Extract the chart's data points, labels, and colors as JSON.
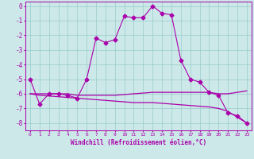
{
  "xlabel": "Windchill (Refroidissement éolien,°C)",
  "background_color": "#cce8e8",
  "grid_color": "#99cccc",
  "line_color": "#aa00aa",
  "xlim": [
    -0.5,
    23.5
  ],
  "ylim": [
    -8.5,
    0.3
  ],
  "yticks": [
    0,
    -1,
    -2,
    -3,
    -4,
    -5,
    -6,
    -7,
    -8
  ],
  "xticks": [
    0,
    1,
    2,
    3,
    4,
    5,
    6,
    7,
    8,
    9,
    10,
    11,
    12,
    13,
    14,
    15,
    16,
    17,
    18,
    19,
    20,
    21,
    22,
    23
  ],
  "line1_x": [
    0,
    1,
    2,
    3,
    4,
    5,
    6,
    7,
    8,
    9,
    10,
    11,
    12,
    13,
    14,
    15,
    16,
    17,
    18,
    19,
    20,
    21,
    22,
    23
  ],
  "line1_y": [
    -5.0,
    -6.7,
    -6.0,
    -6.0,
    -6.1,
    -6.3,
    -5.0,
    -2.2,
    -2.5,
    -2.3,
    -0.7,
    -0.8,
    -0.8,
    0.0,
    -0.5,
    -0.6,
    -3.7,
    -5.0,
    -5.2,
    -5.9,
    -6.1,
    -7.3,
    -7.5,
    -8.0
  ],
  "line2_x": [
    0,
    1,
    2,
    3,
    4,
    5,
    6,
    7,
    8,
    9,
    10,
    11,
    12,
    13,
    14,
    15,
    16,
    17,
    18,
    19,
    20,
    21,
    22,
    23
  ],
  "line2_y": [
    -6.0,
    -6.1,
    -6.15,
    -6.2,
    -6.25,
    -6.3,
    -6.35,
    -6.4,
    -6.45,
    -6.5,
    -6.55,
    -6.6,
    -6.6,
    -6.6,
    -6.65,
    -6.7,
    -6.75,
    -6.8,
    -6.85,
    -6.9,
    -7.0,
    -7.2,
    -7.6,
    -8.0
  ],
  "line3_x": [
    0,
    1,
    2,
    3,
    4,
    5,
    6,
    7,
    8,
    9,
    10,
    11,
    12,
    13,
    14,
    15,
    16,
    17,
    18,
    19,
    20,
    21,
    22,
    23
  ],
  "line3_y": [
    -6.0,
    -6.0,
    -6.0,
    -6.0,
    -6.0,
    -6.1,
    -6.1,
    -6.1,
    -6.1,
    -6.1,
    -6.05,
    -6.0,
    -5.95,
    -5.9,
    -5.9,
    -5.9,
    -5.9,
    -5.9,
    -5.9,
    -5.9,
    -6.0,
    -6.0,
    -5.9,
    -5.8
  ]
}
